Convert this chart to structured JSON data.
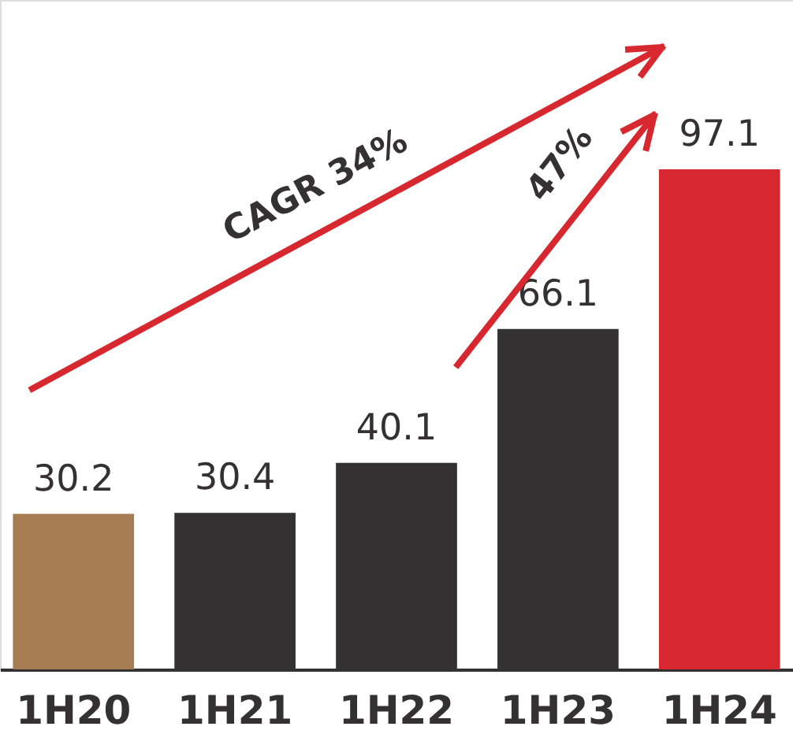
{
  "chart_data": {
    "type": "bar",
    "categories": [
      "1H20",
      "1H21",
      "1H22",
      "1H23",
      "1H24"
    ],
    "values": [
      30.2,
      30.4,
      40.1,
      66.1,
      97.1
    ],
    "colors": [
      "#a67c52",
      "#333132",
      "#333132",
      "#333132",
      "#d7282f"
    ],
    "ylim": [
      0,
      130
    ],
    "data_labels": true,
    "tick_labels": "x",
    "annotations": [
      "CAGR 34%",
      "47%"
    ]
  }
}
